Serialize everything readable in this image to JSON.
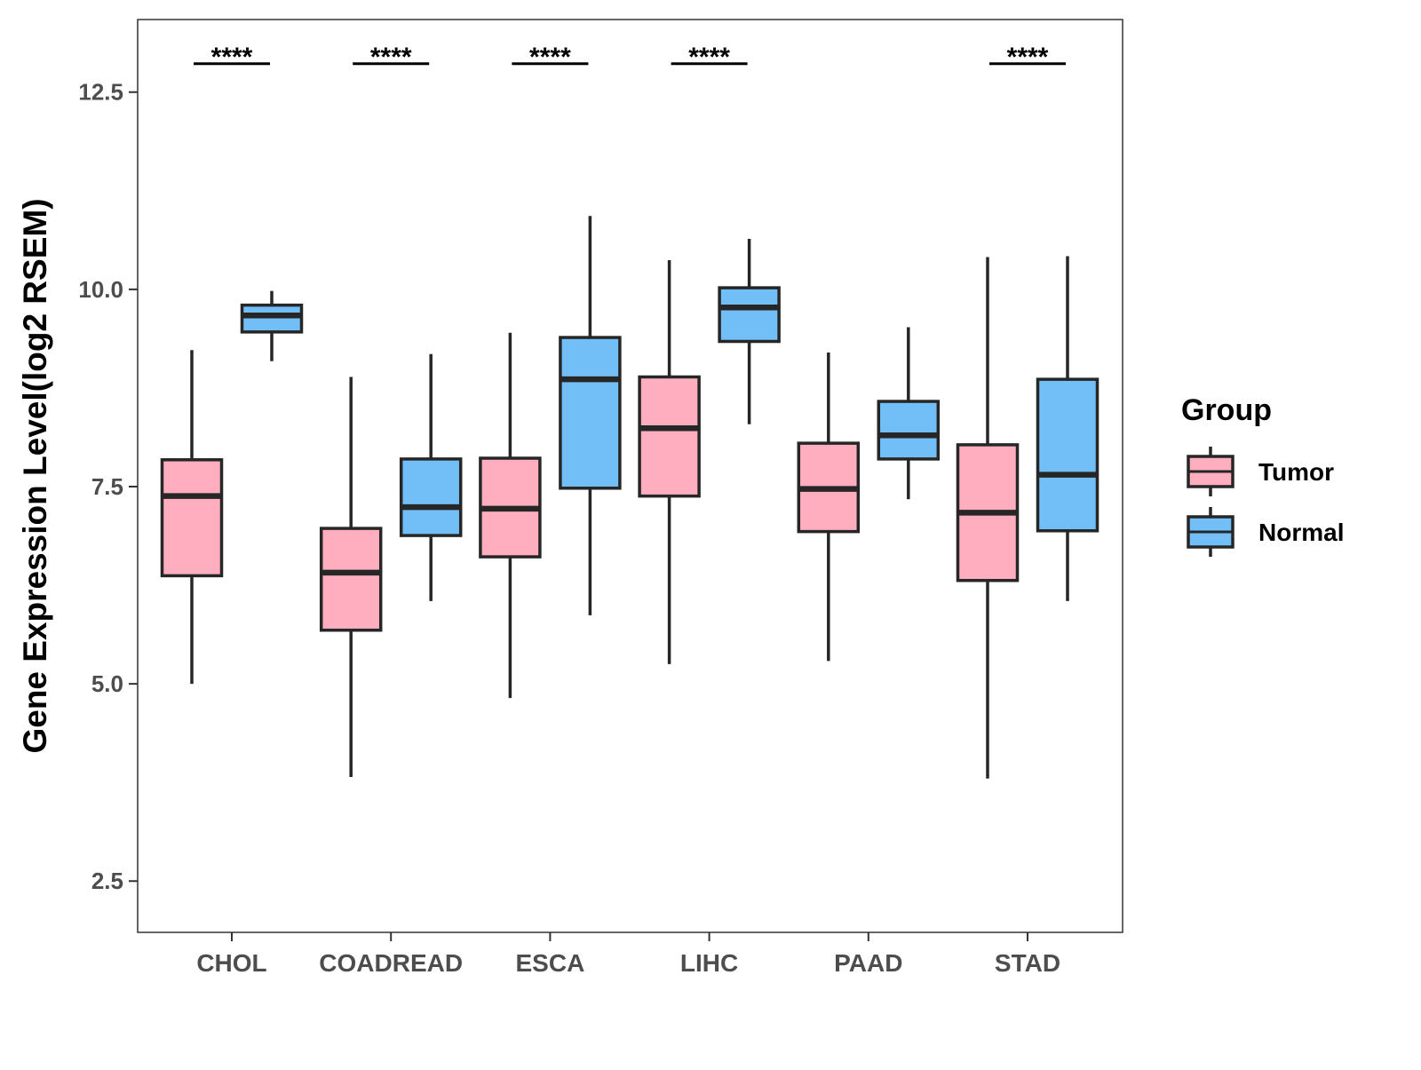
{
  "chart_data": {
    "type": "boxplot",
    "title": "",
    "xlabel": "",
    "ylabel": "Gene Expression Level(log2 RSEM)",
    "ylim": [
      1.85,
      13.42
    ],
    "yticks": [
      2.5,
      5.0,
      7.5,
      10.0,
      12.5
    ],
    "ytick_labels": [
      "2.5",
      "5.0",
      "7.5",
      "10.0",
      "12.5"
    ],
    "grid": false,
    "categories": [
      "CHOL",
      "COADREAD",
      "ESCA",
      "LIHC",
      "PAAD",
      "STAD"
    ],
    "legend": {
      "title": "Group",
      "position": "right",
      "entries": [
        "Tumor",
        "Normal"
      ]
    },
    "series": [
      {
        "name": "Tumor",
        "color": "#FFAEC0",
        "boxes": [
          {
            "whisker_low": 5.0,
            "q1": 6.37,
            "median": 7.38,
            "q3": 7.84,
            "whisker_high": 9.23
          },
          {
            "whisker_low": 3.82,
            "q1": 5.68,
            "median": 6.41,
            "q3": 6.97,
            "whisker_high": 8.89
          },
          {
            "whisker_low": 4.82,
            "q1": 6.61,
            "median": 7.22,
            "q3": 7.86,
            "whisker_high": 9.45
          },
          {
            "whisker_low": 5.25,
            "q1": 7.38,
            "median": 8.24,
            "q3": 8.89,
            "whisker_high": 10.37
          },
          {
            "whisker_low": 5.29,
            "q1": 6.93,
            "median": 7.47,
            "q3": 8.05,
            "whisker_high": 9.2
          },
          {
            "whisker_low": 3.8,
            "q1": 6.31,
            "median": 7.17,
            "q3": 8.03,
            "whisker_high": 10.41
          }
        ]
      },
      {
        "name": "Normal",
        "color": "#72BFF8",
        "boxes": [
          {
            "whisker_low": 9.09,
            "q1": 9.46,
            "median": 9.67,
            "q3": 9.8,
            "whisker_high": 9.98
          },
          {
            "whisker_low": 6.05,
            "q1": 6.88,
            "median": 7.24,
            "q3": 7.85,
            "whisker_high": 9.18
          },
          {
            "whisker_low": 5.87,
            "q1": 7.48,
            "median": 8.86,
            "q3": 9.39,
            "whisker_high": 10.93
          },
          {
            "whisker_low": 8.29,
            "q1": 9.34,
            "median": 9.77,
            "q3": 10.02,
            "whisker_high": 10.64
          },
          {
            "whisker_low": 7.34,
            "q1": 7.85,
            "median": 8.15,
            "q3": 8.58,
            "whisker_high": 9.52
          },
          {
            "whisker_low": 6.05,
            "q1": 6.94,
            "median": 7.65,
            "q3": 8.86,
            "whisker_high": 10.42
          }
        ]
      }
    ],
    "annotations": [
      "****",
      "****",
      "****",
      "****",
      "",
      "****"
    ],
    "annotation_y": 12.86
  }
}
